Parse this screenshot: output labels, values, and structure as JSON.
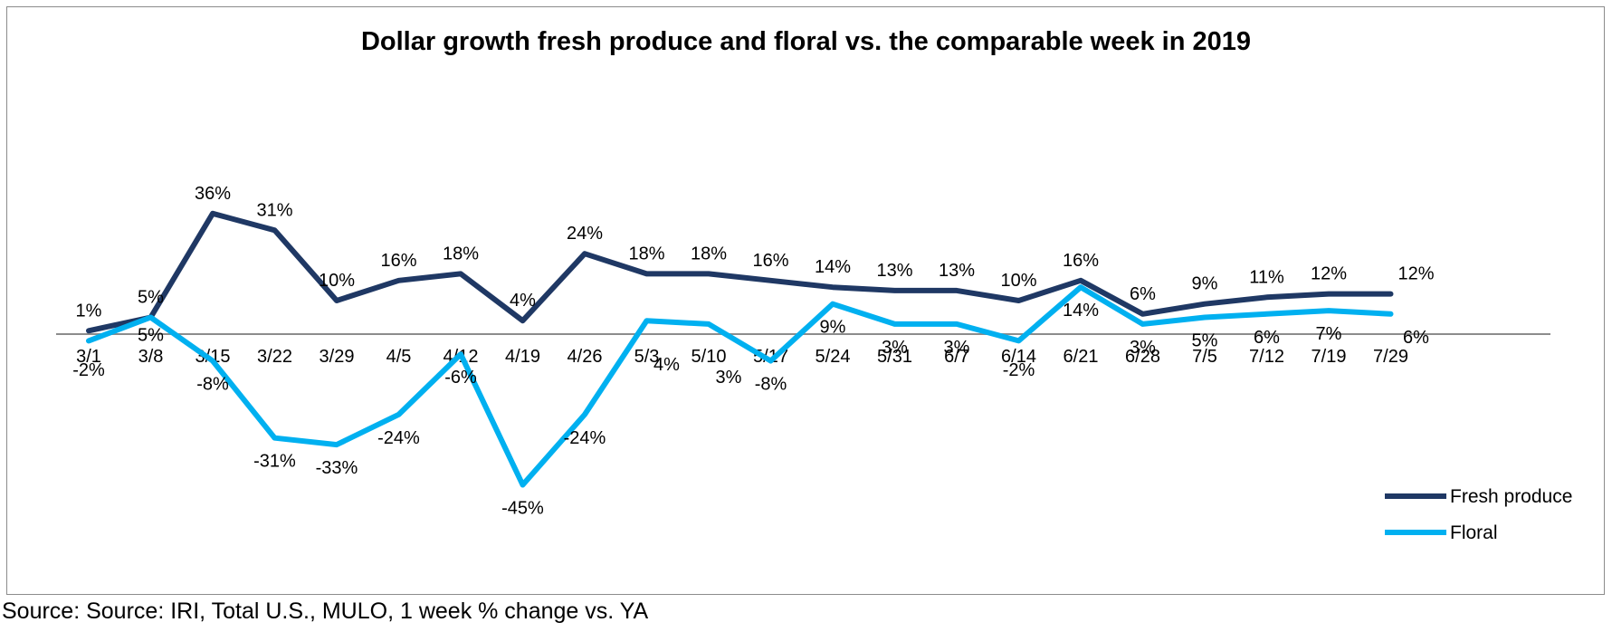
{
  "chart_data": {
    "type": "line",
    "title": "Dollar growth fresh produce and floral vs. the comparable week in 2019",
    "categories": [
      "3/1",
      "3/8",
      "3/15",
      "3/22",
      "3/29",
      "4/5",
      "4/12",
      "4/19",
      "4/26",
      "5/3",
      "5/10",
      "5/17",
      "5/24",
      "5/31",
      "6/7",
      "6/14",
      "6/21",
      "6/28",
      "7/5",
      "7/12",
      "7/19",
      "7/29"
    ],
    "series": [
      {
        "name": "Fresh produce",
        "color": "#1f3864",
        "values": [
          1,
          5,
          36,
          31,
          10,
          16,
          18,
          4,
          24,
          18,
          18,
          16,
          14,
          13,
          13,
          10,
          16,
          6,
          9,
          11,
          12,
          12
        ],
        "labels": [
          "1%",
          "5%",
          "36%",
          "31%",
          "10%",
          "16%",
          "18%",
          "4%",
          "24%",
          "18%",
          "18%",
          "16%",
          "14%",
          "13%",
          "13%",
          "10%",
          "16%",
          "6%",
          "9%",
          "11%",
          "12%",
          "12%"
        ]
      },
      {
        "name": "Floral",
        "color": "#00b0f0",
        "values": [
          -2,
          5,
          -8,
          -31,
          -33,
          -24,
          -6,
          -45,
          -24,
          4,
          3,
          -8,
          9,
          3,
          3,
          -2,
          14,
          3,
          5,
          6,
          7,
          6
        ],
        "labels": [
          "-2%",
          "5%",
          "-8%",
          "-31%",
          "-33%",
          "-24%",
          "-6%",
          "-45%",
          "-24%",
          "4%",
          "3%",
          "-8%",
          "9%",
          "3%",
          "3%",
          "-2%",
          "14%",
          "3%",
          "5%",
          "6%",
          "7%",
          "6%"
        ]
      }
    ],
    "ylim": [
      -50,
      40
    ],
    "xlabel": "",
    "ylabel": "",
    "legend": "bottom-right",
    "grid": false
  },
  "source_note": "Source: Source: IRI, Total U.S., MULO, 1 week % change vs. YA"
}
